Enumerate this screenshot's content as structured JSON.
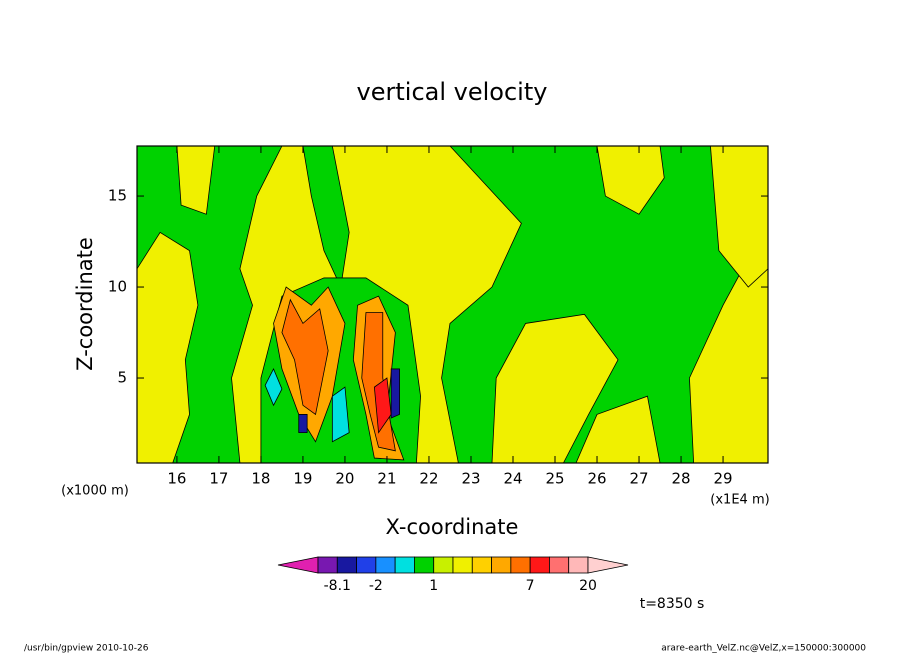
{
  "chart_data": {
    "type": "contour",
    "title": "vertical velocity",
    "x_label": "X-coordinate",
    "y_label": "Z-coordinate",
    "x_unit": "(x1E4 m)",
    "y_unit": "(x1000 m)",
    "xlim": [
      15.05,
      30.07
    ],
    "ylim": [
      0.33,
      17.75
    ],
    "xticks": [
      16,
      17,
      18,
      19,
      20,
      21,
      22,
      23,
      24,
      25,
      26,
      27,
      28,
      29
    ],
    "yticks": [
      5,
      10,
      15
    ],
    "background_color": "#00d200",
    "levels": [
      -14,
      -8.1,
      -4,
      -2,
      -1,
      -0.5,
      1,
      2,
      3,
      4,
      5,
      7,
      11,
      15,
      20
    ],
    "colors": [
      "#e020b0",
      "#7818b0",
      "#1818a0",
      "#2040e8",
      "#1890ff",
      "#00e0e0",
      "#00d200",
      "#c8f000",
      "#f0f000",
      "#ffd000",
      "#ffa800",
      "#ff7000",
      "#ff1818",
      "#ff7070",
      "#ffb8b8",
      "#ffd0d0"
    ],
    "cbticks": [
      -8.1,
      -2,
      1,
      7,
      20
    ],
    "time_label": "t=8350 s",
    "footer_left": "/usr/bin/gpview  2010-10-26",
    "footer_right": "arare-earth_VelZ.nc@VelZ,x=150000:300000",
    "regions": [
      {
        "color": "#f0f000",
        "x": [
          15.05,
          15.05,
          15.6,
          16.3,
          16.5,
          16.2,
          16.3,
          15.9
        ],
        "z": [
          0.33,
          11,
          13,
          12,
          9,
          6,
          3,
          0.33
        ]
      },
      {
        "color": "#f0f000",
        "x": [
          16.0,
          16.9,
          16.7,
          16.1
        ],
        "z": [
          17.75,
          17.75,
          14,
          14.5
        ]
      },
      {
        "color": "#f0f000",
        "x": [
          17.5,
          17.3,
          17.8,
          17.5,
          17.9,
          18.5,
          22.5,
          24.2,
          23.5,
          22.5,
          22.3,
          22.7
        ],
        "z": [
          0.33,
          5,
          9,
          11,
          15,
          17.75,
          17.75,
          13.5,
          10,
          8,
          5,
          0.33
        ]
      },
      {
        "color": "#00d200",
        "x": [
          19.0,
          19.7,
          20.1,
          19.9,
          19.5,
          19.2
        ],
        "z": [
          17.75,
          17.75,
          13,
          10,
          12,
          15
        ]
      },
      {
        "color": "#f0f000",
        "x": [
          23.5,
          23.6,
          24.3,
          25.7,
          26.5,
          25.8,
          25.2
        ],
        "z": [
          0.33,
          5,
          8,
          8.5,
          6,
          3,
          0.33
        ]
      },
      {
        "color": "#f0f000",
        "x": [
          25.5,
          26.0,
          27.2,
          27.5
        ],
        "z": [
          0.33,
          3,
          4,
          0.33
        ]
      },
      {
        "color": "#f0f000",
        "x": [
          28.3,
          28.2,
          29.0,
          29.7,
          30.07,
          30.07
        ],
        "z": [
          0.33,
          5,
          9,
          12,
          14,
          0.33
        ]
      },
      {
        "color": "#f0f000",
        "x": [
          26.0,
          26.2,
          27.0,
          27.6,
          27.5
        ],
        "z": [
          17.75,
          15,
          14,
          16,
          17.75
        ]
      },
      {
        "color": "#f0f000",
        "x": [
          28.7,
          28.9,
          29.6,
          30.07,
          30.07
        ],
        "z": [
          17.75,
          12,
          10,
          11,
          17.75
        ]
      },
      {
        "color": "#00d200",
        "x": [
          18.0,
          18.0,
          18.5,
          19.5,
          20.5,
          21.5,
          21.8,
          21.7
        ],
        "z": [
          0.33,
          5,
          9.5,
          10.5,
          10.5,
          9,
          4,
          0.33
        ]
      },
      {
        "color": "#ffa800",
        "x": [
          18.3,
          18.6,
          19.2,
          19.6,
          20.0,
          19.7,
          19.3,
          18.9,
          18.5
        ],
        "z": [
          8,
          10,
          9,
          10,
          8,
          4,
          1.5,
          3,
          5.5
        ]
      },
      {
        "color": "#ffa800",
        "x": [
          20.2,
          20.3,
          20.8,
          21.2,
          21.0,
          21.4,
          20.7,
          20.5
        ],
        "z": [
          6,
          9,
          9.5,
          7.5,
          3,
          0.5,
          0.6,
          3
        ]
      },
      {
        "color": "#ff7000",
        "x": [
          18.5,
          18.7,
          19.0,
          19.4,
          19.6,
          19.3,
          19.0,
          18.8
        ],
        "z": [
          7.5,
          9.3,
          8,
          8.8,
          6.5,
          3,
          3.5,
          6
        ]
      },
      {
        "color": "#ff7000",
        "x": [
          20.4,
          20.5,
          20.9,
          20.9,
          21.2,
          20.8,
          20.6
        ],
        "z": [
          5,
          8.6,
          8.6,
          5,
          1,
          1.2,
          3
        ]
      },
      {
        "color": "#ff1818",
        "x": [
          20.8,
          20.7,
          21.0,
          21.1
        ],
        "z": [
          2,
          4.5,
          5,
          3
        ]
      },
      {
        "color": "#00e0e0",
        "x": [
          18.1,
          18.3,
          18.5,
          18.3
        ],
        "z": [
          4.6,
          5.5,
          4.4,
          3.5
        ]
      },
      {
        "color": "#00e0e0",
        "x": [
          19.7,
          19.7,
          20.0,
          20.1
        ],
        "z": [
          1.5,
          4,
          4.5,
          2
        ]
      },
      {
        "color": "#1818a0",
        "x": [
          18.9,
          18.9,
          19.1,
          19.1
        ],
        "z": [
          2,
          3,
          3,
          2
        ]
      },
      {
        "color": "#1818a0",
        "x": [
          21.1,
          21.1,
          21.3,
          21.3
        ],
        "z": [
          2.8,
          5.5,
          5.5,
          3
        ]
      }
    ]
  }
}
